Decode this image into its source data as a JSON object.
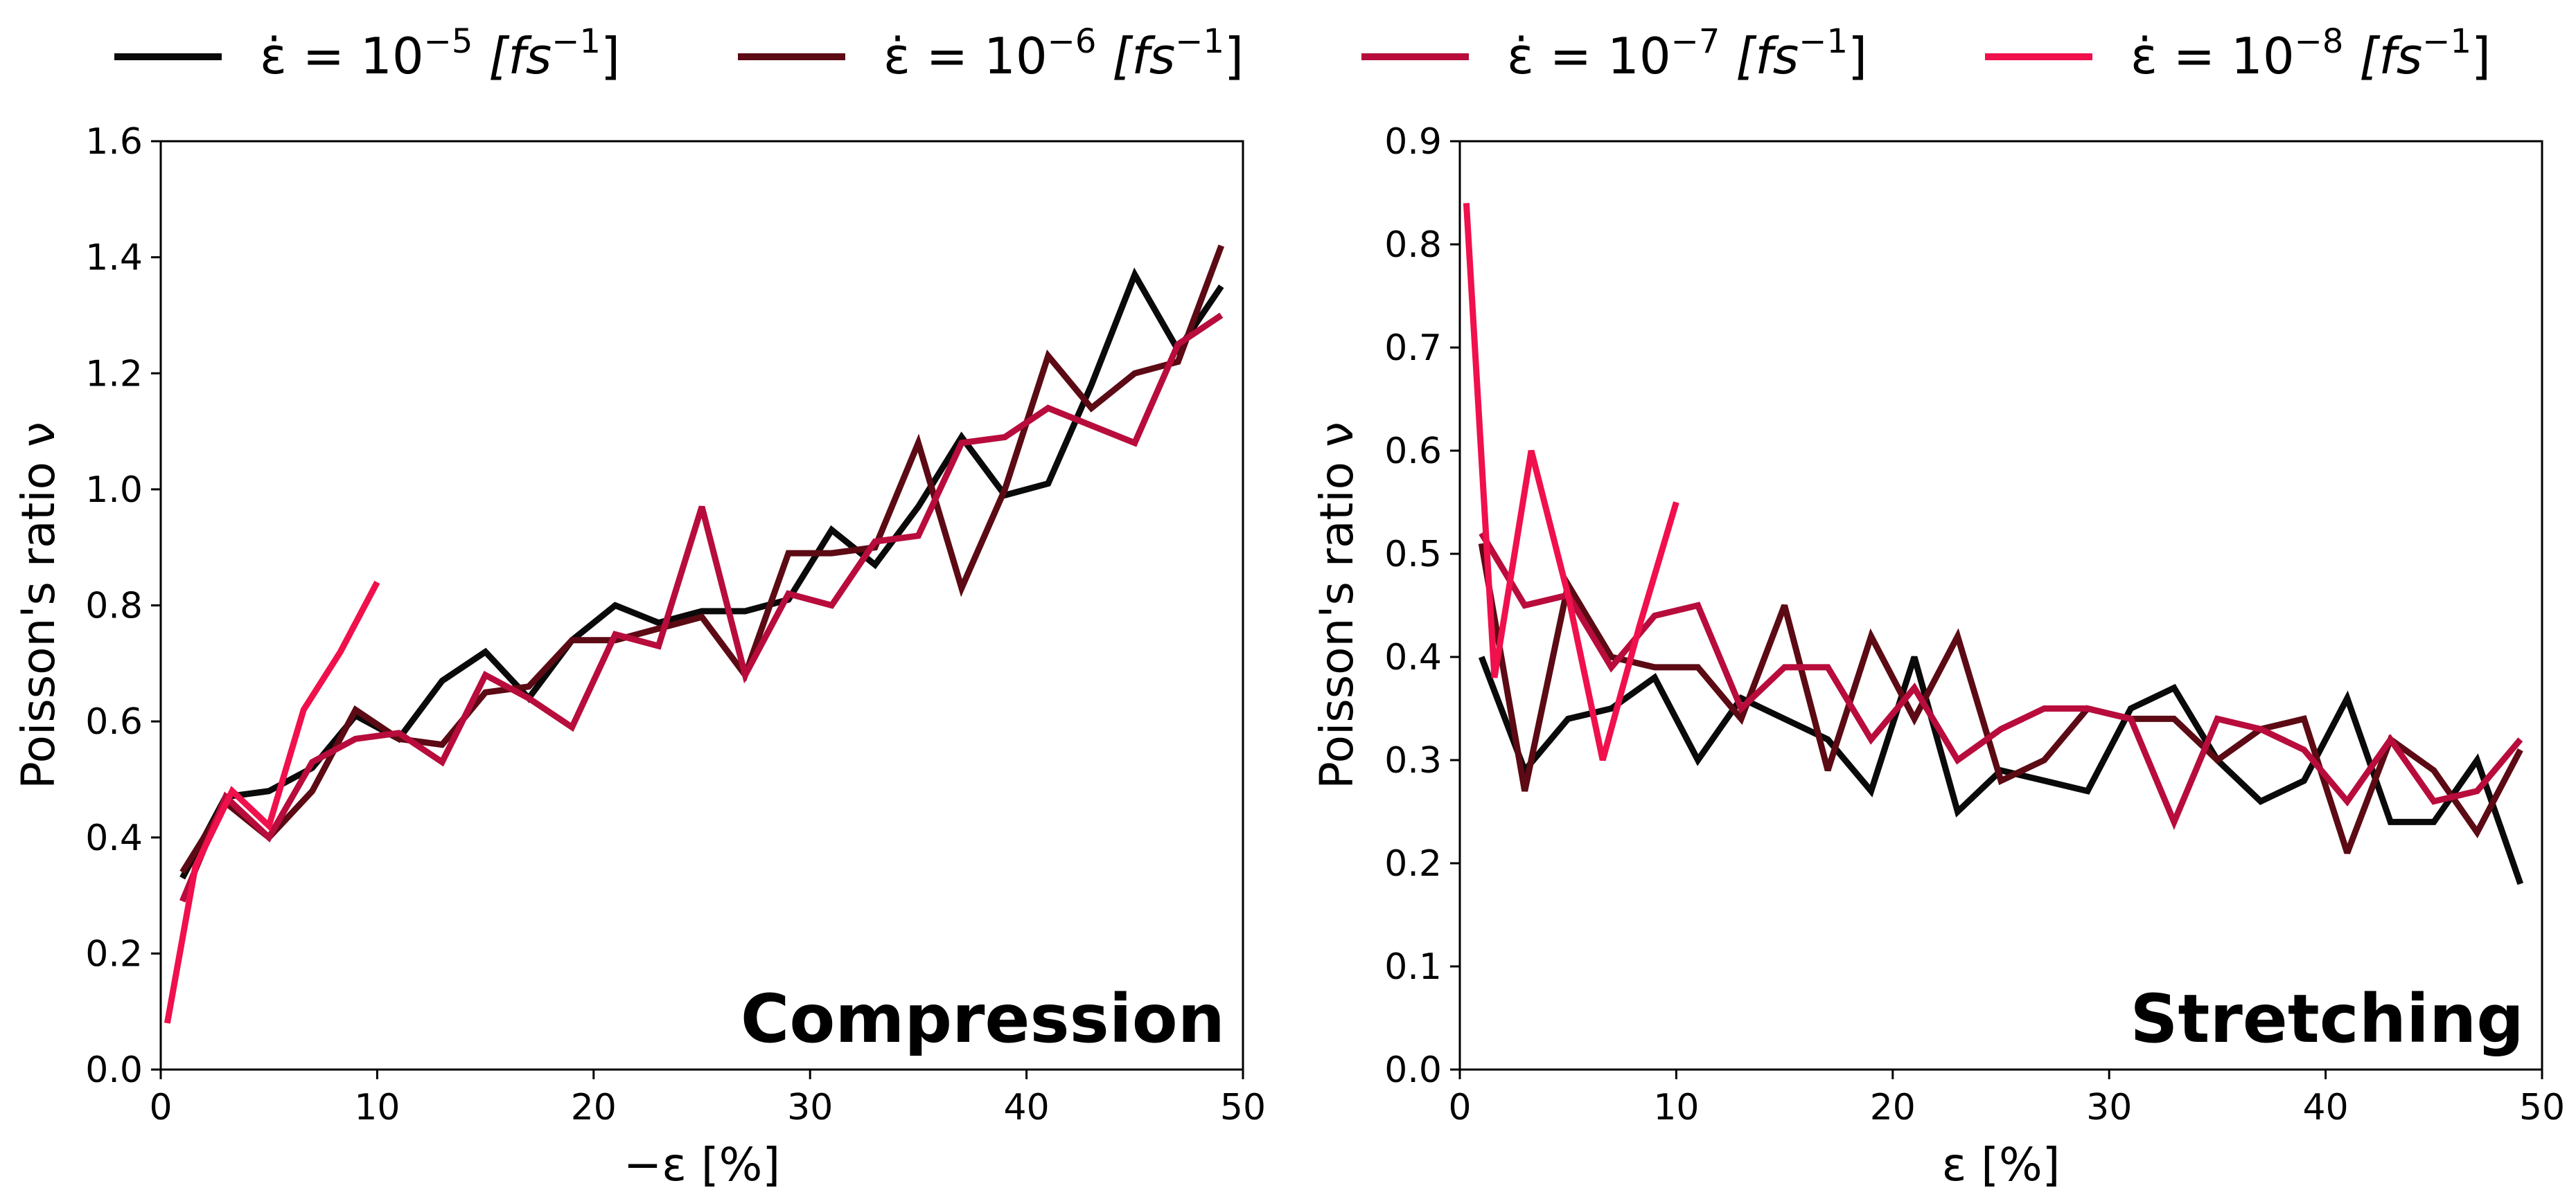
{
  "chart_data": [
    {
      "type": "line",
      "name": "compression",
      "annotation": "Compression",
      "xlabel": "−ε [%]",
      "ylabel": "Poisson's ratio ν",
      "xlim": [
        0,
        50
      ],
      "ylim": [
        0,
        1.6
      ],
      "xticks": [
        0,
        10,
        20,
        30,
        40,
        50
      ],
      "yticks": [
        0.0,
        0.2,
        0.4,
        0.6,
        0.8,
        1.0,
        1.2,
        1.4,
        1.6
      ],
      "ytick_labels": [
        "0.0",
        "0.2",
        "0.4",
        "0.6",
        "0.8",
        "1.0",
        "1.2",
        "1.4",
        "1.6"
      ],
      "series": [
        {
          "name": "1e-5",
          "color": "#0a0a0a",
          "x": [
            1,
            3,
            5,
            7,
            9,
            11,
            13,
            15,
            17,
            19,
            21,
            23,
            25,
            27,
            29,
            31,
            33,
            35,
            37,
            39,
            41,
            43,
            45,
            47,
            49
          ],
          "y": [
            0.33,
            0.47,
            0.48,
            0.52,
            0.61,
            0.57,
            0.67,
            0.72,
            0.64,
            0.74,
            0.8,
            0.77,
            0.79,
            0.79,
            0.81,
            0.93,
            0.87,
            0.97,
            1.09,
            0.99,
            1.01,
            1.18,
            1.37,
            1.24,
            1.35
          ]
        },
        {
          "name": "1e-6",
          "color": "#5c0a14",
          "x": [
            1,
            3,
            5,
            7,
            9,
            11,
            13,
            15,
            17,
            19,
            21,
            23,
            25,
            27,
            29,
            31,
            33,
            35,
            37,
            39,
            41,
            43,
            45,
            47,
            49
          ],
          "y": [
            0.34,
            0.46,
            0.4,
            0.48,
            0.62,
            0.57,
            0.56,
            0.65,
            0.66,
            0.74,
            0.74,
            0.76,
            0.78,
            0.68,
            0.89,
            0.89,
            0.9,
            1.08,
            0.83,
            1.0,
            1.23,
            1.14,
            1.2,
            1.22,
            1.42
          ]
        },
        {
          "name": "1e-7",
          "color": "#b80c3c",
          "x": [
            1,
            3,
            5,
            7,
            9,
            11,
            13,
            15,
            17,
            19,
            21,
            23,
            25,
            27,
            29,
            31,
            33,
            35,
            37,
            39,
            41,
            43,
            45,
            47,
            49
          ],
          "y": [
            0.29,
            0.47,
            0.4,
            0.53,
            0.57,
            0.58,
            0.53,
            0.68,
            0.64,
            0.59,
            0.75,
            0.73,
            0.97,
            0.68,
            0.82,
            0.8,
            0.91,
            0.92,
            1.08,
            1.09,
            1.14,
            1.11,
            1.08,
            1.25,
            1.3
          ]
        },
        {
          "name": "1e-8",
          "color": "#f0104c",
          "x": [
            0.3,
            1.6,
            3.3,
            5,
            6.6,
            8.3,
            10
          ],
          "y": [
            0.08,
            0.35,
            0.48,
            0.42,
            0.62,
            0.72,
            0.84
          ]
        }
      ]
    },
    {
      "type": "line",
      "name": "stretching",
      "annotation": "Stretching",
      "xlabel": "ε [%]",
      "ylabel": "Poisson's ratio ν",
      "xlim": [
        0,
        50
      ],
      "ylim": [
        0,
        0.9
      ],
      "xticks": [
        0,
        10,
        20,
        30,
        40,
        50
      ],
      "yticks": [
        0.0,
        0.1,
        0.2,
        0.3,
        0.4,
        0.5,
        0.6,
        0.7,
        0.8,
        0.9
      ],
      "ytick_labels": [
        "0.0",
        "0.1",
        "0.2",
        "0.3",
        "0.4",
        "0.5",
        "0.6",
        "0.7",
        "0.8",
        "0.9"
      ],
      "series": [
        {
          "name": "1e-5",
          "color": "#0a0a0a",
          "x": [
            1,
            3,
            5,
            7,
            9,
            11,
            13,
            15,
            17,
            19,
            21,
            23,
            25,
            27,
            29,
            31,
            33,
            35,
            37,
            39,
            41,
            43,
            45,
            47,
            49
          ],
          "y": [
            0.4,
            0.29,
            0.34,
            0.35,
            0.38,
            0.3,
            0.36,
            0.34,
            0.32,
            0.27,
            0.4,
            0.25,
            0.29,
            0.28,
            0.27,
            0.35,
            0.37,
            0.3,
            0.26,
            0.28,
            0.36,
            0.24,
            0.24,
            0.3,
            0.18
          ]
        },
        {
          "name": "1e-6",
          "color": "#5c0a14",
          "x": [
            1,
            3,
            5,
            7,
            9,
            11,
            13,
            15,
            17,
            19,
            21,
            23,
            25,
            27,
            29,
            31,
            33,
            35,
            37,
            39,
            41,
            43,
            45,
            47,
            49
          ],
          "y": [
            0.51,
            0.27,
            0.47,
            0.4,
            0.39,
            0.39,
            0.34,
            0.45,
            0.29,
            0.42,
            0.34,
            0.42,
            0.28,
            0.3,
            0.35,
            0.34,
            0.34,
            0.3,
            0.33,
            0.34,
            0.21,
            0.32,
            0.29,
            0.23,
            0.31
          ]
        },
        {
          "name": "1e-7",
          "color": "#b80c3c",
          "x": [
            1,
            3,
            5,
            7,
            9,
            11,
            13,
            15,
            17,
            19,
            21,
            23,
            25,
            27,
            29,
            31,
            33,
            35,
            37,
            39,
            41,
            43,
            45,
            47,
            49
          ],
          "y": [
            0.52,
            0.45,
            0.46,
            0.39,
            0.44,
            0.45,
            0.35,
            0.39,
            0.39,
            0.32,
            0.37,
            0.3,
            0.33,
            0.35,
            0.35,
            0.34,
            0.24,
            0.34,
            0.33,
            0.31,
            0.26,
            0.32,
            0.26,
            0.27,
            0.32
          ]
        },
        {
          "name": "1e-8",
          "color": "#f0104c",
          "x": [
            0.3,
            1.6,
            3.3,
            5,
            6.6,
            8.3,
            10
          ],
          "y": [
            0.84,
            0.38,
            0.6,
            0.46,
            0.3,
            0.43,
            0.55
          ]
        }
      ]
    }
  ],
  "legend": [
    {
      "series": "1e-5",
      "color": "#0a0a0a",
      "lhs": "ε̇ = 10",
      "exp": "−5",
      "unit_open": " [fs",
      "unit_exp": "−1",
      "unit_close": "]"
    },
    {
      "series": "1e-6",
      "color": "#5c0a14",
      "lhs": "ε̇ = 10",
      "exp": "−6",
      "unit_open": " [fs",
      "unit_exp": "−1",
      "unit_close": "]"
    },
    {
      "series": "1e-7",
      "color": "#b80c3c",
      "lhs": "ε̇ = 10",
      "exp": "−7",
      "unit_open": " [fs",
      "unit_exp": "−1",
      "unit_close": "]"
    },
    {
      "series": "1e-8",
      "color": "#f0104c",
      "lhs": "ε̇ = 10",
      "exp": "−8",
      "unit_open": " [fs",
      "unit_exp": "−1",
      "unit_close": "]"
    }
  ]
}
